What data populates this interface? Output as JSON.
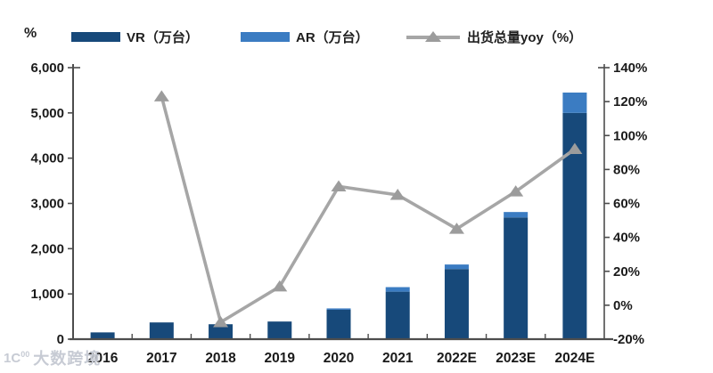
{
  "legend": {
    "axis_unit_label": "%",
    "items": [
      {
        "label": "VR（万台）",
        "type": "bar",
        "color": "#17497A"
      },
      {
        "label": "AR（万台）",
        "type": "bar",
        "color": "#3B7CC2"
      },
      {
        "label": "出货总量yoy（%）",
        "type": "line",
        "color": "#A6A6A6"
      }
    ]
  },
  "watermark": {
    "logo": "1C",
    "logo_sup": "00",
    "text": "大数跨境"
  },
  "chart_data": {
    "type": "combo",
    "categories": [
      "2016",
      "2017",
      "2018",
      "2019",
      "2020",
      "2021",
      "2022E",
      "2023E",
      "2024E"
    ],
    "series": [
      {
        "name": "VR（万台）",
        "type": "bar",
        "stack": "shipments",
        "color": "#17497A",
        "values": [
          150,
          370,
          330,
          390,
          650,
          1050,
          1550,
          2690,
          5000
        ]
      },
      {
        "name": "AR（万台）",
        "type": "bar",
        "stack": "shipments",
        "color": "#3B7CC2",
        "values": [
          0,
          0,
          0,
          0,
          30,
          100,
          100,
          120,
          450
        ]
      },
      {
        "name": "出货总量yoy（%）",
        "type": "line",
        "axis": "right",
        "color": "#A6A6A6",
        "marker": "triangle-up",
        "marker_color": "#9C9C9C",
        "values": [
          null,
          123,
          -10,
          11,
          70,
          65,
          45,
          67,
          92
        ]
      }
    ],
    "left_axis": {
      "min": 0,
      "max": 6000,
      "tick_step": 1000,
      "tick_labels": [
        "0",
        "1,000",
        "2,000",
        "3,000",
        "4,000",
        "5,000",
        "6,000"
      ]
    },
    "right_axis": {
      "min": -20,
      "max": 140,
      "tick_step": 20,
      "tick_labels": [
        "-20%",
        "0%",
        "20%",
        "40%",
        "60%",
        "80%",
        "100%",
        "120%",
        "140%"
      ]
    },
    "grid": false,
    "legend_position": "top",
    "axis_color": "#4d4d4d",
    "tick_label_color": "#1a1a1a"
  }
}
